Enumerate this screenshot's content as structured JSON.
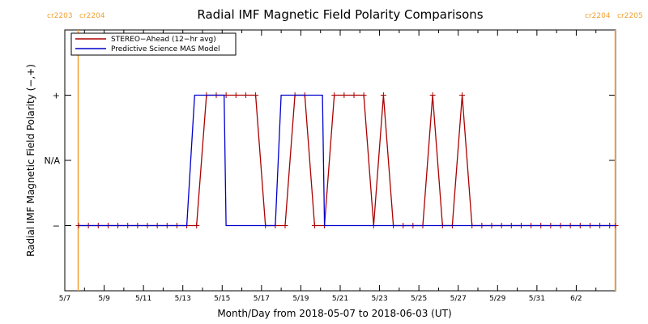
{
  "chart_data": {
    "type": "line",
    "title": "Radial IMF Magnetic Field Polarity Comparisons",
    "xlabel": "Month/Day from 2018-05-07 to 2018-06-03 (UT)",
    "ylabel": "Radial IMF Magnetic Field Polarity (−,+)",
    "xlim": [
      0,
      28
    ],
    "ylim": [
      -2,
      2
    ],
    "x_unit": "days from 2018-05-07 00:00 UT",
    "x_ticks": [
      {
        "x": 0,
        "label": "5/7"
      },
      {
        "x": 2,
        "label": "5/9"
      },
      {
        "x": 4,
        "label": "5/11"
      },
      {
        "x": 6,
        "label": "5/13"
      },
      {
        "x": 8,
        "label": "5/15"
      },
      {
        "x": 10,
        "label": "5/17"
      },
      {
        "x": 12,
        "label": "5/19"
      },
      {
        "x": 14,
        "label": "5/21"
      },
      {
        "x": 16,
        "label": "5/23"
      },
      {
        "x": 18,
        "label": "5/25"
      },
      {
        "x": 20,
        "label": "5/27"
      },
      {
        "x": 22,
        "label": "5/29"
      },
      {
        "x": 24,
        "label": "5/31"
      },
      {
        "x": 26,
        "label": "6/2"
      }
    ],
    "y_ticks": [
      {
        "y": 1,
        "label": "+"
      },
      {
        "y": 0,
        "label": "N/A"
      },
      {
        "y": -1,
        "label": "−"
      }
    ],
    "legend": {
      "position": "top-left",
      "entries": [
        "STEREO−Ahead (12−hr avg)",
        "Predictive Science MAS Model"
      ]
    },
    "carrington_markers": [
      {
        "x": 0.68,
        "labels": [
          "cr2203",
          "cr2204"
        ],
        "color": "#f0a030"
      },
      {
        "x": 27.98,
        "labels": [
          "cr2204",
          "cr2205"
        ],
        "color": "#f0a030"
      }
    ],
    "series": [
      {
        "name": "STEREO−Ahead (12−hr avg)",
        "color": "#aa0000",
        "markers": "plus",
        "points": [
          [
            0.7,
            -1
          ],
          [
            1.2,
            -1
          ],
          [
            1.7,
            -1
          ],
          [
            2.2,
            -1
          ],
          [
            2.7,
            -1
          ],
          [
            3.2,
            -1
          ],
          [
            3.7,
            -1
          ],
          [
            4.2,
            -1
          ],
          [
            4.7,
            -1
          ],
          [
            5.2,
            -1
          ],
          [
            5.7,
            -1
          ],
          [
            6.2,
            -1
          ],
          [
            6.7,
            -1
          ],
          [
            7.2,
            1
          ],
          [
            7.7,
            1
          ],
          [
            8.2,
            1
          ],
          [
            8.7,
            1
          ],
          [
            9.2,
            1
          ],
          [
            9.7,
            1
          ],
          [
            10.2,
            -1
          ],
          [
            10.7,
            -1
          ],
          [
            11.2,
            -1
          ],
          [
            11.7,
            1
          ],
          [
            12.2,
            1
          ],
          [
            12.7,
            -1
          ],
          [
            13.2,
            -1
          ],
          [
            13.7,
            1
          ],
          [
            14.2,
            1
          ],
          [
            14.7,
            1
          ],
          [
            15.2,
            1
          ],
          [
            15.7,
            -1
          ],
          [
            16.2,
            1
          ],
          [
            16.7,
            -1
          ],
          [
            17.2,
            -1
          ],
          [
            17.7,
            -1
          ],
          [
            18.2,
            -1
          ],
          [
            18.7,
            1
          ],
          [
            19.2,
            -1
          ],
          [
            19.7,
            -1
          ],
          [
            20.2,
            1
          ],
          [
            20.7,
            -1
          ],
          [
            21.2,
            -1
          ],
          [
            21.7,
            -1
          ],
          [
            22.2,
            -1
          ],
          [
            22.7,
            -1
          ],
          [
            23.2,
            -1
          ],
          [
            23.7,
            -1
          ],
          [
            24.2,
            -1
          ],
          [
            24.7,
            -1
          ],
          [
            25.2,
            -1
          ],
          [
            25.7,
            -1
          ],
          [
            26.2,
            -1
          ],
          [
            26.7,
            -1
          ],
          [
            27.2,
            -1
          ],
          [
            27.7,
            -1
          ],
          [
            28,
            -1
          ]
        ]
      },
      {
        "name": "Predictive Science MAS Model",
        "color": "#0000cc",
        "markers": "none",
        "points": [
          [
            0.7,
            -1
          ],
          [
            6.2,
            -1
          ],
          [
            6.6,
            1
          ],
          [
            8.1,
            1
          ],
          [
            8.2,
            -1
          ],
          [
            10.7,
            -1
          ],
          [
            11.0,
            1
          ],
          [
            13.1,
            1
          ],
          [
            13.2,
            -1
          ],
          [
            28,
            -1
          ]
        ]
      }
    ]
  }
}
